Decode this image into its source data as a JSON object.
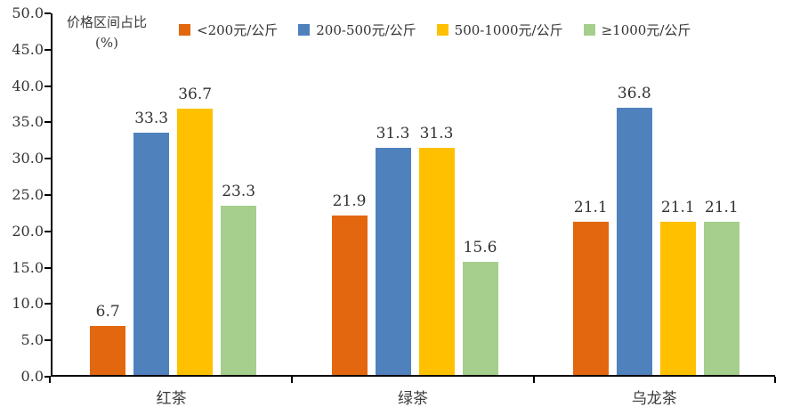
{
  "chart_data": {
    "type": "bar",
    "title": "",
    "axis_title": "价格区间占比",
    "axis_title_unit": "(%)",
    "categories": [
      "红茶",
      "绿茶",
      "乌龙茶"
    ],
    "series": [
      {
        "name": "<200元/公斤",
        "color": "#E2670E",
        "values": [
          6.7,
          21.9,
          21.1
        ]
      },
      {
        "name": "200-500元/公斤",
        "color": "#4F81BD",
        "values": [
          33.3,
          31.3,
          36.8
        ]
      },
      {
        "name": "500-1000元/公斤",
        "color": "#FFC000",
        "values": [
          36.7,
          31.3,
          21.1
        ]
      },
      {
        "name": "≥1000元/公斤",
        "color": "#A6CE8C",
        "values": [
          23.3,
          15.6,
          21.1
        ]
      }
    ],
    "ylim": [
      0,
      50
    ],
    "ytick_step": 5,
    "ytick_labels": [
      "0.0",
      "5.0",
      "10.0",
      "15.0",
      "20.0",
      "25.0",
      "30.0",
      "35.0",
      "40.0",
      "45.0",
      "50.0"
    ],
    "grid": "off",
    "legend_position": "top",
    "value_labels": "on",
    "axis_color": "#000000"
  }
}
